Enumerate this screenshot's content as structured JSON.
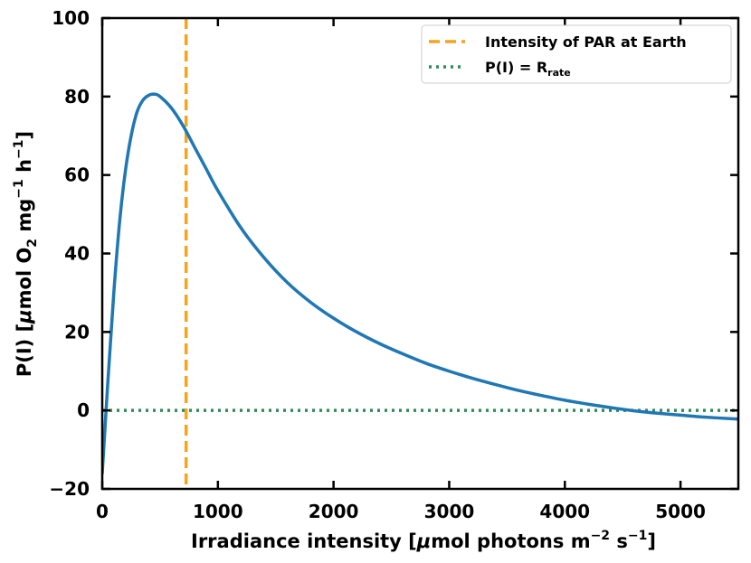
{
  "chart_data": {
    "type": "line",
    "title": "",
    "xlabel_parts": {
      "prefix": "Irradiance intensity [",
      "mu": "μ",
      "mid": "mol photons m",
      "exp1": "−2",
      "mid2": " s",
      "exp2": "−1",
      "suffix": "]"
    },
    "ylabel_parts": {
      "prefix": "P(I) [",
      "mu": "μ",
      "mid": "mol O",
      "sub": "2",
      "mid2": " mg",
      "exp1": "−1",
      "mid3": " h",
      "exp2": "−1",
      "suffix": "]"
    },
    "xlim": [
      0,
      5500
    ],
    "ylim": [
      -20,
      100
    ],
    "x_ticks": [
      0,
      1000,
      2000,
      3000,
      4000,
      5000
    ],
    "x_tick_labels": [
      "0",
      "1000",
      "2000",
      "3000",
      "4000",
      "5000"
    ],
    "y_ticks": [
      -20,
      0,
      20,
      40,
      60,
      80,
      100
    ],
    "y_tick_labels": [
      "−20",
      "0",
      "20",
      "40",
      "60",
      "80",
      "100"
    ],
    "series": [
      {
        "name": "P(I)",
        "color": "#1f77b4",
        "x": [
          0,
          50,
          100,
          150,
          200,
          250,
          300,
          350,
          400,
          450,
          500,
          600,
          700,
          800,
          900,
          1000,
          1200,
          1400,
          1600,
          1800,
          2000,
          2200,
          2400,
          2600,
          2800,
          3000,
          3200,
          3400,
          3600,
          3800,
          4000,
          4200,
          4400,
          4600,
          4800,
          5000,
          5200,
          5500
        ],
        "y": [
          -16,
          8,
          30,
          48,
          61,
          70,
          76,
          79,
          80.3,
          80.6,
          80,
          77,
          72.5,
          67,
          61.5,
          56,
          46.5,
          38.9,
          32.6,
          27.6,
          23.5,
          20,
          17,
          14.4,
          12,
          10,
          8.2,
          6.6,
          5.1,
          3.8,
          2.6,
          1.6,
          0.7,
          -0.1,
          -0.7,
          -1.2,
          -1.7,
          -2.2
        ]
      }
    ],
    "vline": {
      "label": "Intensity of PAR at Earth",
      "x": 725,
      "color": "#f5a41c",
      "style": "dashed"
    },
    "hline": {
      "label_prefix": "P(I) = R",
      "label_sub": "rate",
      "y": 0,
      "color": "#2e8b57",
      "style": "dotted"
    },
    "legend_position": "top-right",
    "grid": false
  }
}
